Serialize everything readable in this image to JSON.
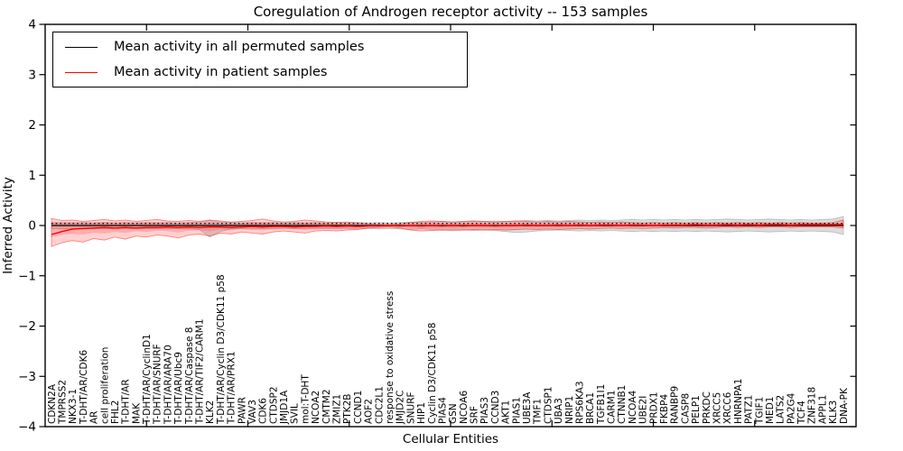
{
  "figure": {
    "title": "Coregulation of Androgen receptor activity -- 153 samples",
    "xlabel": "Cellular Entities",
    "ylabel": "Inferred Activity"
  },
  "legend": {
    "items": [
      {
        "label": "Mean activity in all permuted samples",
        "color": "#000000"
      },
      {
        "label": "Mean activity in patient samples",
        "color": "#ff0000"
      }
    ]
  },
  "chart_data": {
    "type": "line",
    "title": "Coregulation of Androgen receptor activity -- 153 samples",
    "xlabel": "Cellular Entities",
    "ylabel": "Inferred Activity",
    "ylim": [
      -4,
      4
    ],
    "grid": false,
    "legend_position": "upper left",
    "y_tick_values": [
      4,
      3,
      2,
      1,
      0,
      -1,
      -2,
      -3,
      -4
    ],
    "y_tick_labels": [
      "4",
      "3",
      "2",
      "1",
      "0",
      "−1",
      "−2",
      "−3",
      "−4"
    ],
    "categories": [
      "CDKN2A",
      "TMPRSS2",
      "NKX3-1",
      "T-DHT/AR/CDK6",
      "AR",
      "cell proliferation",
      "FHL2",
      "T-DHT/AR",
      "MAK",
      "T-DHT/AR/CyclinD1",
      "T-DHT/AR/SNURF",
      "T-DHT/AR/ARA70",
      "T-DHT/AR/Ubc9",
      "T-DHT/AR/Caspase 8",
      "T-DHT/AR/TIF2/CARM1",
      "KLK2",
      "T-DHT/AR/Cyclin D3/CDK11 p58",
      "T-DHT/AR/PRX1",
      "PAWR",
      "VAV3",
      "CDK6",
      "CTDSP2",
      "JMJD1A",
      "SVIL",
      "mol:T-DHT",
      "NCOA2",
      "CMTM2",
      "ZMIZ1",
      "PTK2B",
      "CCND1",
      "AOF2",
      "CDC2L1",
      "response to oxidative stress",
      "JMJD2C",
      "SNURF",
      "HIP1",
      "Cyclin D3/CDK11 p58",
      "PIAS4",
      "GSN",
      "NCOA6",
      "SRF",
      "PIAS3",
      "CCND3",
      "AKT1",
      "PIAS1",
      "UBE3A",
      "TMF1",
      "CTDSP1",
      "UBA3",
      "NRIP1",
      "RPS6KA3",
      "BRCA1",
      "TGFB1I1",
      "CARM1",
      "CTNNB1",
      "NCOA4",
      "UBE2I",
      "PRDX1",
      "FKBP4",
      "RANBP9",
      "CASP8",
      "PELP1",
      "PRKDC",
      "XRCC5",
      "XRCC6",
      "HNRNPA1",
      "PATZ1",
      "TGIF1",
      "MED1",
      "LATS2",
      "PA2G4",
      "TCF4",
      "ZNF318",
      "APPL1",
      "KLK3",
      "DNA-PK"
    ],
    "series": [
      {
        "name": "Mean activity in all permuted samples",
        "color": "#000000",
        "style": "solid",
        "constant": 0.0
      },
      {
        "name": "Mean activity in patient samples",
        "color": "#ff0000",
        "style": "solid",
        "values": [
          -0.18,
          -0.12,
          -0.07,
          -0.06,
          -0.05,
          -0.04,
          -0.05,
          -0.04,
          -0.05,
          -0.04,
          -0.04,
          -0.03,
          -0.04,
          -0.03,
          -0.04,
          -0.03,
          -0.03,
          -0.04,
          -0.03,
          -0.02,
          -0.03,
          -0.02,
          -0.02,
          -0.03,
          -0.02,
          -0.02,
          -0.01,
          -0.02,
          -0.01,
          -0.02,
          -0.01,
          -0.01,
          0.0,
          -0.01,
          0.0,
          -0.01,
          0.0,
          -0.01,
          0.0,
          -0.01,
          0.0,
          0.0,
          -0.01,
          0.0,
          0.0,
          0.01,
          0.0,
          0.0,
          0.01,
          0.0,
          0.01,
          0.0,
          0.01,
          0.01,
          0.0,
          0.01,
          0.01,
          0.0,
          0.01,
          0.01,
          0.01,
          0.02,
          0.01,
          0.01,
          0.02,
          0.01,
          0.02,
          0.01,
          0.02,
          0.02,
          0.01,
          0.02,
          0.02,
          0.02,
          0.02,
          0.02
        ]
      }
    ],
    "reference_line": {
      "value": 0.04,
      "style": "dotted",
      "color": "#000000"
    },
    "bands": [
      {
        "name": "permuted-sample-range",
        "fill": "rgba(130,130,130,0.28)",
        "edge": "rgba(100,100,100,0.35)",
        "hi": [
          0.05,
          0.06,
          0.05,
          0.06,
          0.05,
          0.06,
          0.05,
          0.06,
          0.05,
          0.06,
          0.05,
          0.06,
          0.05,
          0.06,
          0.07,
          0.1,
          0.07,
          0.06,
          0.05,
          0.06,
          0.05,
          0.06,
          0.05,
          0.06,
          0.05,
          0.06,
          0.05,
          0.06,
          0.05,
          0.06,
          0.05,
          0.06,
          0.05,
          0.06,
          0.07,
          0.06,
          0.07,
          0.08,
          0.07,
          0.08,
          0.09,
          0.08,
          0.09,
          0.08,
          0.09,
          0.1,
          0.09,
          0.1,
          0.09,
          0.1,
          0.11,
          0.1,
          0.11,
          0.1,
          0.11,
          0.12,
          0.11,
          0.12,
          0.11,
          0.12,
          0.11,
          0.12,
          0.11,
          0.12,
          0.13,
          0.12,
          0.11,
          0.12,
          0.13,
          0.12,
          0.11,
          0.12,
          0.11,
          0.12,
          0.13,
          0.18
        ],
        "lo": [
          -0.06,
          -0.07,
          -0.06,
          -0.07,
          -0.06,
          -0.07,
          -0.06,
          -0.07,
          -0.06,
          -0.07,
          -0.06,
          -0.07,
          -0.06,
          -0.07,
          -0.08,
          -0.23,
          -0.12,
          -0.07,
          -0.06,
          -0.07,
          -0.06,
          -0.07,
          -0.06,
          -0.07,
          -0.06,
          -0.07,
          -0.06,
          -0.07,
          -0.06,
          -0.07,
          -0.06,
          -0.07,
          -0.06,
          -0.07,
          -0.08,
          -0.07,
          -0.08,
          -0.09,
          -0.08,
          -0.09,
          -0.1,
          -0.09,
          -0.1,
          -0.12,
          -0.14,
          -0.13,
          -0.11,
          -0.1,
          -0.09,
          -0.1,
          -0.11,
          -0.1,
          -0.11,
          -0.1,
          -0.11,
          -0.12,
          -0.11,
          -0.12,
          -0.11,
          -0.12,
          -0.11,
          -0.12,
          -0.11,
          -0.12,
          -0.13,
          -0.12,
          -0.11,
          -0.12,
          -0.13,
          -0.12,
          -0.11,
          -0.12,
          -0.11,
          -0.12,
          -0.13,
          -0.18
        ]
      },
      {
        "name": "patient-sample-range",
        "fill": "rgba(255,45,45,0.22)",
        "edge": "rgba(255,0,0,0.45)",
        "hi": [
          0.14,
          0.1,
          0.11,
          0.08,
          0.1,
          0.12,
          0.09,
          0.11,
          0.08,
          0.1,
          0.12,
          0.09,
          0.08,
          0.1,
          0.08,
          0.11,
          0.09,
          0.07,
          0.08,
          0.1,
          0.13,
          0.09,
          0.07,
          0.08,
          0.11,
          0.09,
          0.07,
          0.06,
          0.07,
          0.05,
          0.03,
          0.02,
          0.02,
          0.03,
          0.06,
          0.08,
          0.09,
          0.08,
          0.07,
          0.08,
          0.09,
          0.08,
          0.07,
          0.08,
          0.09,
          0.08,
          0.07,
          0.08,
          0.07,
          0.08,
          0.07,
          0.06,
          0.07,
          0.06,
          0.07,
          0.06,
          0.05,
          0.06,
          0.05,
          0.06,
          0.05,
          0.06,
          0.05,
          0.06,
          0.05,
          0.06,
          0.05,
          0.06,
          0.05,
          0.06,
          0.05,
          0.06,
          0.05,
          0.05,
          0.06,
          0.11
        ],
        "lo": [
          -0.42,
          -0.34,
          -0.3,
          -0.33,
          -0.26,
          -0.29,
          -0.23,
          -0.27,
          -0.21,
          -0.23,
          -0.19,
          -0.21,
          -0.25,
          -0.19,
          -0.17,
          -0.21,
          -0.15,
          -0.17,
          -0.13,
          -0.15,
          -0.17,
          -0.13,
          -0.11,
          -0.13,
          -0.15,
          -0.11,
          -0.1,
          -0.11,
          -0.09,
          -0.08,
          -0.05,
          -0.04,
          -0.03,
          -0.05,
          -0.09,
          -0.11,
          -0.1,
          -0.09,
          -0.1,
          -0.09,
          -0.08,
          -0.09,
          -0.08,
          -0.09,
          -0.08,
          -0.07,
          -0.08,
          -0.07,
          -0.08,
          -0.07,
          -0.06,
          -0.07,
          -0.06,
          -0.05,
          -0.06,
          -0.05,
          -0.06,
          -0.05,
          -0.04,
          -0.05,
          -0.04,
          -0.04,
          -0.05,
          -0.04,
          -0.03,
          -0.04,
          -0.03,
          -0.04,
          -0.03,
          -0.03,
          -0.04,
          -0.03,
          -0.03,
          -0.03,
          -0.03,
          -0.05
        ]
      }
    ]
  }
}
